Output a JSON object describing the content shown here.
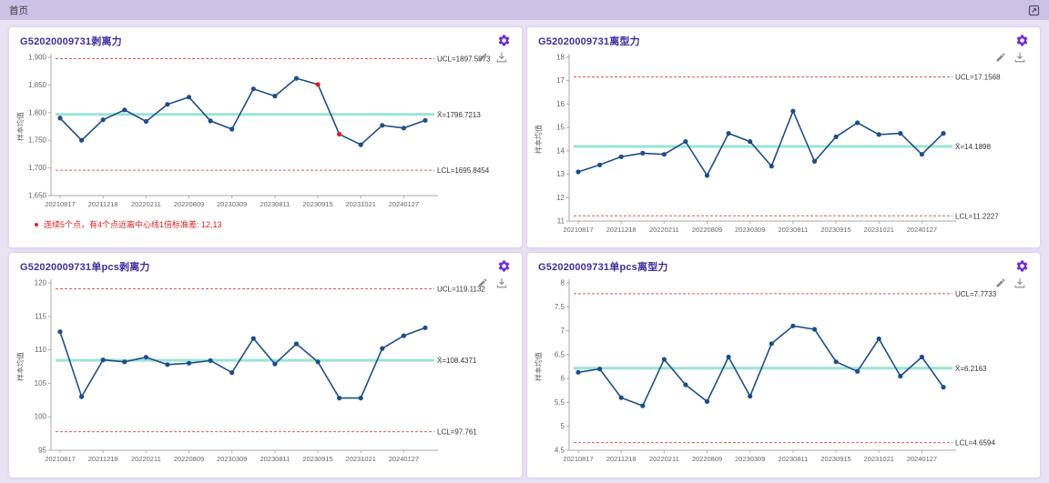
{
  "topbar": {
    "title": "首页"
  },
  "icons": {
    "topbar_right": "expand-icon",
    "panel_header": "gear-icon",
    "chart_tools": [
      "pencil-icon",
      "download-icon"
    ]
  },
  "theme": {
    "page_bg": "#e9e2f4",
    "topbar_bg": "#cdc1e6",
    "panel_bg": "#ffffff",
    "title_color": "#3d2d9e",
    "gear_color": "#6d2fd0",
    "line_color": "#1d4e8a",
    "center_color": "#8fe2d2",
    "limit_color": "#e4574f",
    "alert_color": "#e21f1f",
    "axis_color": "#aaaaaa",
    "tick_text_color": "#666666",
    "line_label_color": "#333333"
  },
  "chart_data": [
    {
      "type": "line",
      "title": "G52020009731剥离力",
      "ylabel": "样本均值",
      "x": [
        "20210817",
        "20211218",
        "20220211",
        "20220809",
        "20230309",
        "20230811",
        "20230915",
        "20231021",
        "20240127"
      ],
      "values": [
        1790,
        1750,
        1787,
        1805,
        1784,
        1815,
        1828,
        1785,
        1770,
        1843,
        1830,
        1862,
        1851,
        1761,
        1742,
        1777,
        1772,
        1786
      ],
      "ucl": 1897.5973,
      "cl": 1796.7213,
      "lcl": 1695.8454,
      "ucl_label": "UCL=1897.5973",
      "cl_label": "X̄=1796.7213",
      "lcl_label": "LCL=1695.8454",
      "ylim": [
        1650,
        1900
      ],
      "ytick_values": [
        1650,
        1700,
        1750,
        1800,
        1850,
        1900
      ],
      "ytick_labels": [
        "1,650",
        "1,700",
        "1,750",
        "1,800",
        "1,850",
        "1,900"
      ],
      "red_indices": [
        12,
        13
      ],
      "annotation": "连续5个点，有4个点远离中心线1倍标准差: 12,13"
    },
    {
      "type": "line",
      "title": "G52020009731离型力",
      "ylabel": "样本均值",
      "x": [
        "20210817",
        "20211218",
        "20220211",
        "20220809",
        "20230309",
        "20230811",
        "20230915",
        "20231021",
        "20240127"
      ],
      "values": [
        13.1,
        13.4,
        13.75,
        13.9,
        13.85,
        14.4,
        12.95,
        14.75,
        14.4,
        13.35,
        15.7,
        13.55,
        14.6,
        15.2,
        14.7,
        14.75,
        13.85,
        14.75
      ],
      "ucl": 17.1568,
      "cl": 14.1898,
      "lcl": 11.2227,
      "ucl_label": "UCL=17.1568",
      "cl_label": "X̄=14.1898",
      "lcl_label": "LCL=11.2227",
      "ylim": [
        11,
        18
      ],
      "ytick_values": [
        11,
        12,
        13,
        14,
        15,
        16,
        17,
        18
      ],
      "ytick_labels": [
        "11",
        "12",
        "13",
        "14",
        "15",
        "16",
        "17",
        "18"
      ],
      "red_indices": []
    },
    {
      "type": "line",
      "title": "G52020009731单pcs剥离力",
      "ylabel": "样本均值",
      "x": [
        "20210817",
        "20211218",
        "20220211",
        "20220809",
        "20230309",
        "20230811",
        "20230915",
        "20231021",
        "20240127"
      ],
      "values": [
        112.7,
        103.0,
        108.5,
        108.2,
        108.9,
        107.8,
        108.0,
        108.4,
        106.6,
        111.7,
        107.9,
        110.9,
        108.2,
        102.8,
        102.8,
        110.2,
        112.1,
        113.3
      ],
      "ucl": 119.1132,
      "cl": 108.4371,
      "lcl": 97.761,
      "ucl_label": "UCL=119.1132",
      "cl_label": "X̄=108.4371",
      "lcl_label": "LCL=97.761",
      "ylim": [
        95,
        120
      ],
      "ytick_values": [
        95,
        100,
        105,
        110,
        115,
        120
      ],
      "ytick_labels": [
        "95",
        "100",
        "105",
        "110",
        "115",
        "120"
      ],
      "red_indices": []
    },
    {
      "type": "line",
      "title": "G52020009731单pcs离型力",
      "ylabel": "样本均值",
      "x": [
        "20210817",
        "20211218",
        "20220211",
        "20220809",
        "20230309",
        "20230811",
        "20230915",
        "20231021",
        "20240127"
      ],
      "values": [
        6.13,
        6.2,
        5.6,
        5.43,
        6.4,
        5.87,
        5.52,
        6.45,
        5.63,
        6.73,
        7.1,
        7.03,
        6.35,
        6.15,
        6.83,
        6.05,
        6.45,
        5.82
      ],
      "ucl": 7.7733,
      "cl": 6.2163,
      "lcl": 4.6594,
      "ucl_label": "UCL=7.7733",
      "cl_label": "X̄=6.2163",
      "lcl_label": "LCL=4.6594",
      "ylim": [
        4.5,
        8
      ],
      "ytick_values": [
        4.5,
        5,
        5.5,
        6,
        6.5,
        7,
        7.5,
        8
      ],
      "ytick_labels": [
        "4.5",
        "5",
        "5.5",
        "6",
        "6.5",
        "7",
        "7.5",
        "8"
      ],
      "red_indices": []
    }
  ]
}
